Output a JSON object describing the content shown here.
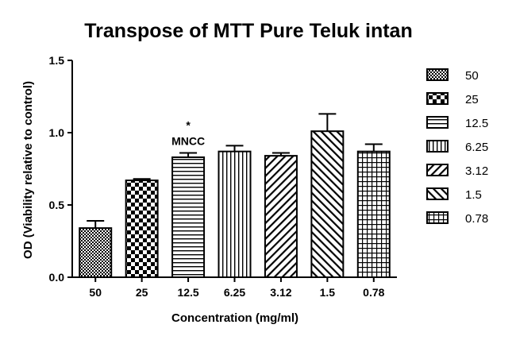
{
  "chart_data": {
    "type": "bar",
    "title": "Transpose of MTT Pure Teluk intan",
    "xlabel": "Concentration (mg/ml)",
    "ylabel": "OD (Viability relative to control)",
    "ylim": [
      0,
      1.5
    ],
    "yticks": [
      "0.0",
      "0.5",
      "1.0",
      "1.5"
    ],
    "categories": [
      "50",
      "25",
      "12.5",
      "6.25",
      "3.12",
      "1.5",
      "0.78"
    ],
    "values": [
      0.34,
      0.67,
      0.83,
      0.87,
      0.84,
      1.01,
      0.87
    ],
    "errors": [
      0.05,
      0.01,
      0.03,
      0.04,
      0.02,
      0.12,
      0.05
    ],
    "patterns": [
      "dense-check",
      "checker",
      "h-lines",
      "v-lines",
      "diag-right",
      "diag-left",
      "grid"
    ],
    "annotations": [
      {
        "category": "12.5",
        "lines": [
          "*",
          "MNCC"
        ]
      }
    ],
    "legend": {
      "position": "right",
      "entries": [
        "50",
        "25",
        "12.5",
        "6.25",
        "3.12",
        "1.5",
        "0.78"
      ]
    },
    "grid": false
  }
}
